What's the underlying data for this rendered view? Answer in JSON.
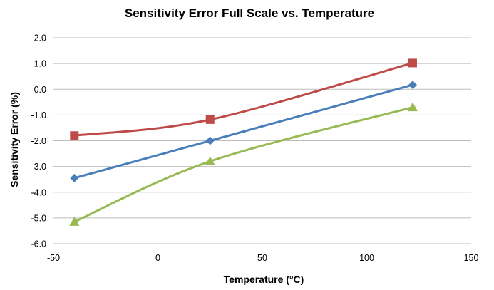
{
  "chart_data": {
    "type": "line",
    "title": "Sensitivity Error Full Scale vs. Temperature",
    "xlabel": "Temperature (°C)",
    "ylabel": "Sensitivity Error (%)",
    "xlim": [
      -50,
      150
    ],
    "ylim": [
      -6.0,
      2.0
    ],
    "x_ticks": [
      -50,
      0,
      50,
      100,
      150
    ],
    "y_ticks": [
      2.0,
      1.0,
      0.0,
      -1.0,
      -2.0,
      -3.0,
      -4.0,
      -5.0,
      -6.0
    ],
    "x_tick_labels": [
      "-50",
      "0",
      "50",
      "100",
      "150"
    ],
    "y_tick_labels": [
      "2.0",
      "1.0",
      "0.0",
      "-1.0",
      "-2.0",
      "-3.0",
      "-4.0",
      "-5.0",
      "-6.0"
    ],
    "grid": true,
    "series": [
      {
        "color": "#4a7ebb",
        "marker": "diamond",
        "x": [
          -40,
          25,
          122
        ],
        "y": [
          -3.45,
          -2.0,
          0.17
        ]
      },
      {
        "color": "#be4b48",
        "marker": "square",
        "x": [
          -40,
          25,
          122
        ],
        "y": [
          -1.8,
          -1.18,
          1.02
        ]
      },
      {
        "color": "#98b954",
        "marker": "triangle",
        "x": [
          -40,
          25,
          122
        ],
        "y": [
          -5.15,
          -2.8,
          -0.7
        ]
      }
    ]
  }
}
